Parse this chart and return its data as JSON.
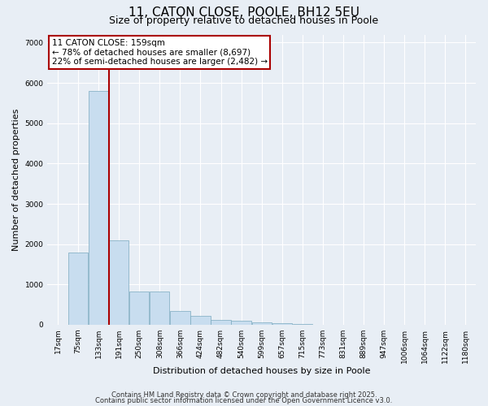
{
  "title": "11, CATON CLOSE, POOLE, BH12 5EU",
  "subtitle": "Size of property relative to detached houses in Poole",
  "xlabel": "Distribution of detached houses by size in Poole",
  "ylabel": "Number of detached properties",
  "bar_color": "#c8ddef",
  "bar_edge_color": "#7aaabf",
  "background_color": "#e8eef5",
  "grid_color": "#ffffff",
  "red_line_color": "#aa0000",
  "annotation_box_color": "#aa0000",
  "categories": [
    "17sqm",
    "75sqm",
    "133sqm",
    "191sqm",
    "250sqm",
    "308sqm",
    "366sqm",
    "424sqm",
    "482sqm",
    "540sqm",
    "599sqm",
    "657sqm",
    "715sqm",
    "773sqm",
    "831sqm",
    "889sqm",
    "947sqm",
    "1006sqm",
    "1064sqm",
    "1122sqm",
    "1180sqm"
  ],
  "values": [
    0,
    1800,
    5800,
    2100,
    820,
    820,
    350,
    230,
    110,
    90,
    60,
    30,
    15,
    8,
    4,
    2,
    1,
    1,
    0,
    0,
    0
  ],
  "red_line_bar_index": 2,
  "annotation_line1": "11 CATON CLOSE: 159sqm",
  "annotation_line2": "← 78% of detached houses are smaller (8,697)",
  "annotation_line3": "22% of semi-detached houses are larger (2,482) →",
  "ylim": [
    0,
    7200
  ],
  "yticks": [
    0,
    1000,
    2000,
    3000,
    4000,
    5000,
    6000,
    7000
  ],
  "footer_text1": "Contains HM Land Registry data © Crown copyright and database right 2025.",
  "footer_text2": "Contains public sector information licensed under the Open Government Licence v3.0.",
  "title_fontsize": 11,
  "subtitle_fontsize": 9,
  "tick_fontsize": 6.5,
  "label_fontsize": 8,
  "annotation_fontsize": 7.5,
  "footer_fontsize": 6.0
}
